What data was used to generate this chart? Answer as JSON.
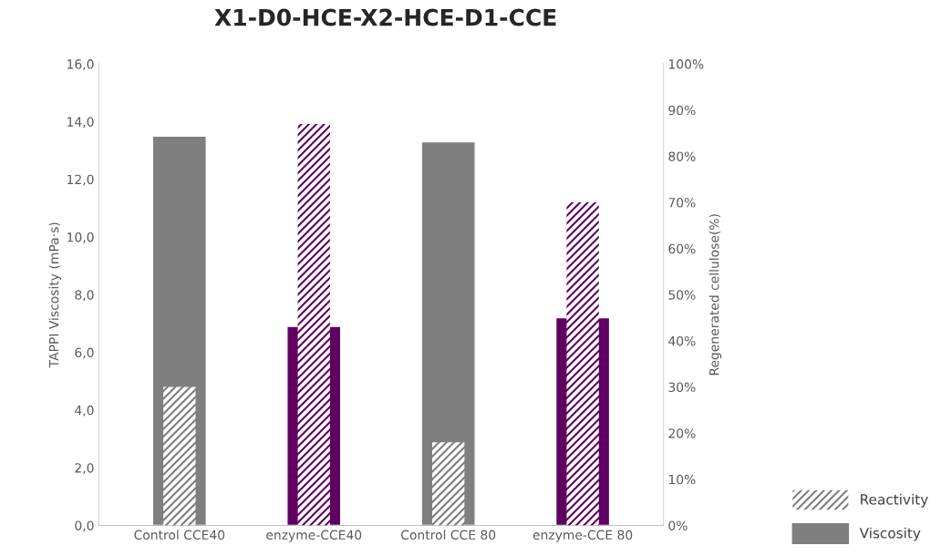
{
  "chart_data": {
    "type": "bar",
    "title": "X1-D0-HCE-X2-HCE-D1-CCE",
    "ylabel": "TAPPI Viscosity (mPa·s)",
    "y2label": "Regenerated cellulose(%)",
    "categories": [
      "Control CCE40",
      "enzyme-CCE40",
      "Control CCE 80",
      "enzyme-CCE 80"
    ],
    "series": [
      {
        "name": "Viscosity",
        "color": "#7f7f7f",
        "colors": [
          "#7f7f7f",
          "#5f0060",
          "#7f7f7f",
          "#5f0060"
        ],
        "values": [
          13.5,
          6.9,
          13.3,
          7.2
        ]
      },
      {
        "name": "Reactivity",
        "color": "#7f7f7f",
        "colors": [
          "#7f7f7f",
          "#5f0060",
          "#7f7f7f",
          "#5f0060"
        ],
        "axis": "y2",
        "values": [
          30,
          87,
          18,
          70
        ]
      }
    ],
    "ylim": [
      0,
      16
    ],
    "yticks": [
      {
        "value": 0,
        "label": "0,0"
      },
      {
        "value": 2,
        "label": "2,0"
      },
      {
        "value": 4,
        "label": "4,0"
      },
      {
        "value": 6,
        "label": "6,0"
      },
      {
        "value": 8,
        "label": "8,0"
      },
      {
        "value": 10,
        "label": "10,0"
      },
      {
        "value": 12,
        "label": "12,0"
      },
      {
        "value": 14,
        "label": "14,0"
      },
      {
        "value": 16,
        "label": "16,0"
      }
    ],
    "y2lim": [
      0,
      100
    ],
    "y2ticks": [
      {
        "value": 0,
        "label": "0%"
      },
      {
        "value": 10,
        "label": "10%"
      },
      {
        "value": 20,
        "label": "20%"
      },
      {
        "value": 30,
        "label": "30%"
      },
      {
        "value": 40,
        "label": "40%"
      },
      {
        "value": 50,
        "label": "50%"
      },
      {
        "value": 60,
        "label": "60%"
      },
      {
        "value": 70,
        "label": "70%"
      },
      {
        "value": 80,
        "label": "80%"
      },
      {
        "value": 90,
        "label": "90%"
      },
      {
        "value": 100,
        "label": "100%"
      }
    ],
    "grid": false,
    "legend": "bottom right"
  }
}
